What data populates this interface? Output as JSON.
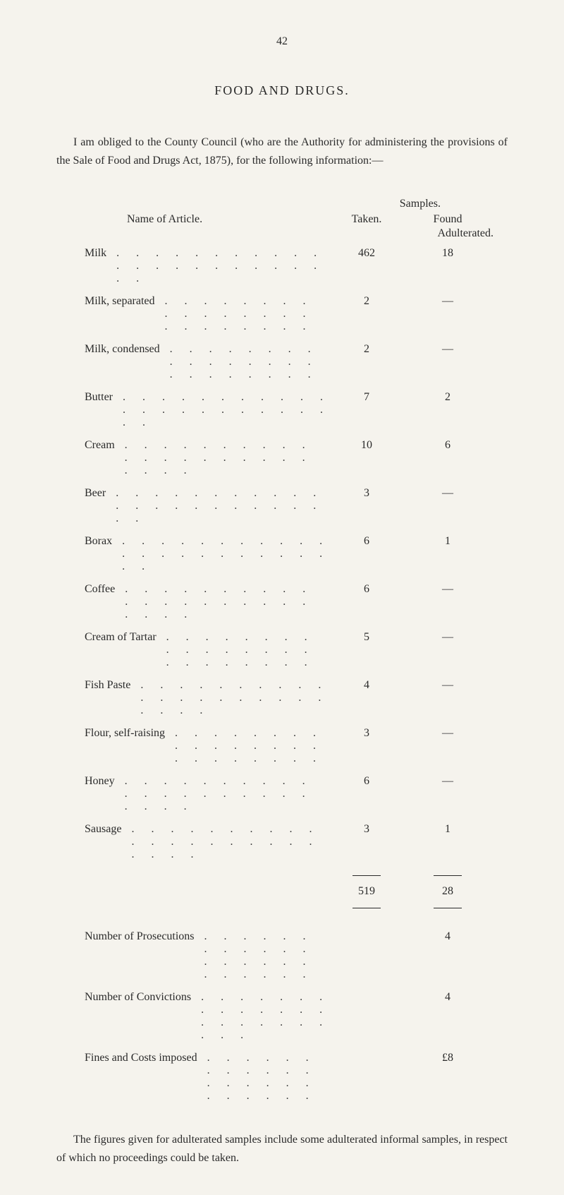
{
  "page_number": "42",
  "title": "FOOD AND DRUGS.",
  "intro": "I am obliged to the County Council (who are the Authority for administering the provisions of the Sale of Food and Drugs Act, 1875), for the following information:—",
  "samples_label": "Samples.",
  "name_of_article": "Name of Article.",
  "taken_label": "Taken.",
  "found_label": "Found",
  "adulterated_label": "Adulterated.",
  "rows": [
    {
      "name": "Milk",
      "taken": "462",
      "found": "18"
    },
    {
      "name": "Milk, separated",
      "taken": "2",
      "found": "—"
    },
    {
      "name": "Milk, condensed",
      "taken": "2",
      "found": "—"
    },
    {
      "name": "Butter",
      "taken": "7",
      "found": "2"
    },
    {
      "name": "Cream",
      "taken": "10",
      "found": "6"
    },
    {
      "name": "Beer",
      "taken": "3",
      "found": "—"
    },
    {
      "name": "Borax",
      "taken": "6",
      "found": "1"
    },
    {
      "name": "Coffee",
      "taken": "6",
      "found": "—"
    },
    {
      "name": "Cream of Tartar",
      "taken": "5",
      "found": "—"
    },
    {
      "name": "Fish Paste",
      "taken": "4",
      "found": "—"
    },
    {
      "name": "Flour, self-raising",
      "taken": "3",
      "found": "—"
    },
    {
      "name": "Honey",
      "taken": "6",
      "found": "—"
    },
    {
      "name": "Sausage",
      "taken": "3",
      "found": "1"
    }
  ],
  "total_taken": "519",
  "total_found": "28",
  "summary": [
    {
      "label": "Number of Prosecutions",
      "value": "4"
    },
    {
      "label": "Number of Convictions",
      "value": "4"
    },
    {
      "label": "Fines and Costs imposed",
      "value": "£8"
    }
  ],
  "footnote": "The figures given for adulterated samples include some adulterated informal samples, in respect of which no proceedings could be taken.",
  "dots": ". . . . . . . . . . . . . . . . . . . . . . . ."
}
